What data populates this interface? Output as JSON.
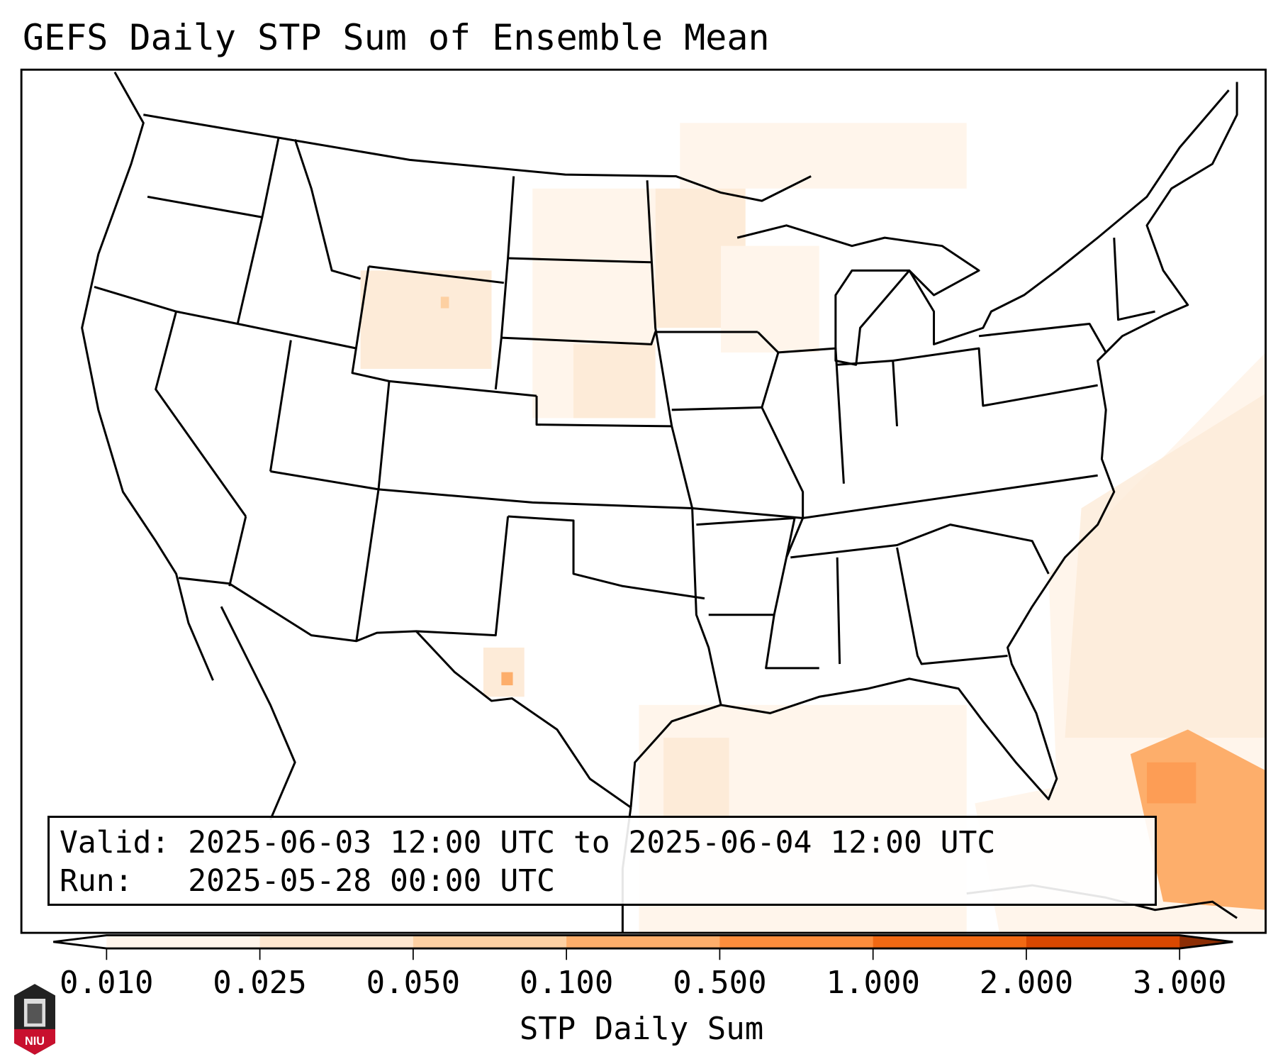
{
  "title": "GEFS Daily STP Sum of Ensemble Mean",
  "info": {
    "valid_line": "Valid: 2025-06-03 12:00 UTC to 2025-06-04 12:00 UTC",
    "run_line": "Run:   2025-05-28 00:00 UTC"
  },
  "colorbar": {
    "label": "STP Daily Sum",
    "ticks": [
      "0.010",
      "0.025",
      "0.050",
      "0.100",
      "0.500",
      "1.000",
      "2.000",
      "3.000"
    ],
    "colors": [
      "#fff5eb",
      "#fee6ce",
      "#fdd0a2",
      "#fdae6b",
      "#fd8d3c",
      "#f16913",
      "#d94801",
      "#8c2d04"
    ],
    "under_color": "#ffffff"
  },
  "logo": {
    "text": "NIU"
  }
}
